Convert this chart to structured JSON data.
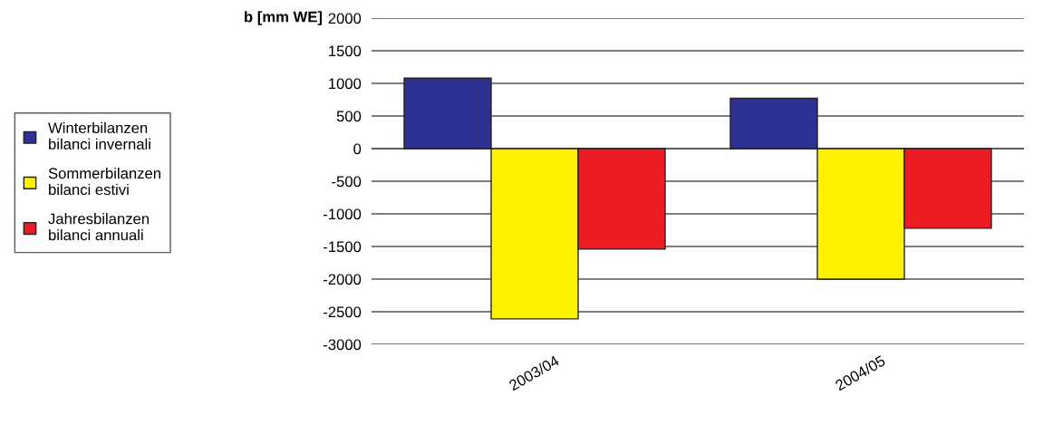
{
  "chart_data": {
    "type": "bar",
    "ylabel": "b [mm WE]",
    "categories": [
      "2003/04",
      "2004/05"
    ],
    "series": [
      {
        "name": "Winterbilanzen\nbilanci invernali",
        "color": "#2e3192",
        "values": [
          1080,
          770
        ]
      },
      {
        "name": "Sommerbilanzen\nbilanci estivi",
        "color": "#fff200",
        "values": [
          -2610,
          -2000
        ]
      },
      {
        "name": "Jahresbilanzen\nbilanci annuali",
        "color": "#ed1c24",
        "values": [
          -1540,
          -1220
        ]
      }
    ],
    "ylim": [
      -3000,
      2000
    ],
    "yticks": [
      -3000,
      -2500,
      -2000,
      -1500,
      -1000,
      -500,
      0,
      500,
      1000,
      1500,
      2000
    ],
    "grid": "y",
    "legend": "left"
  }
}
